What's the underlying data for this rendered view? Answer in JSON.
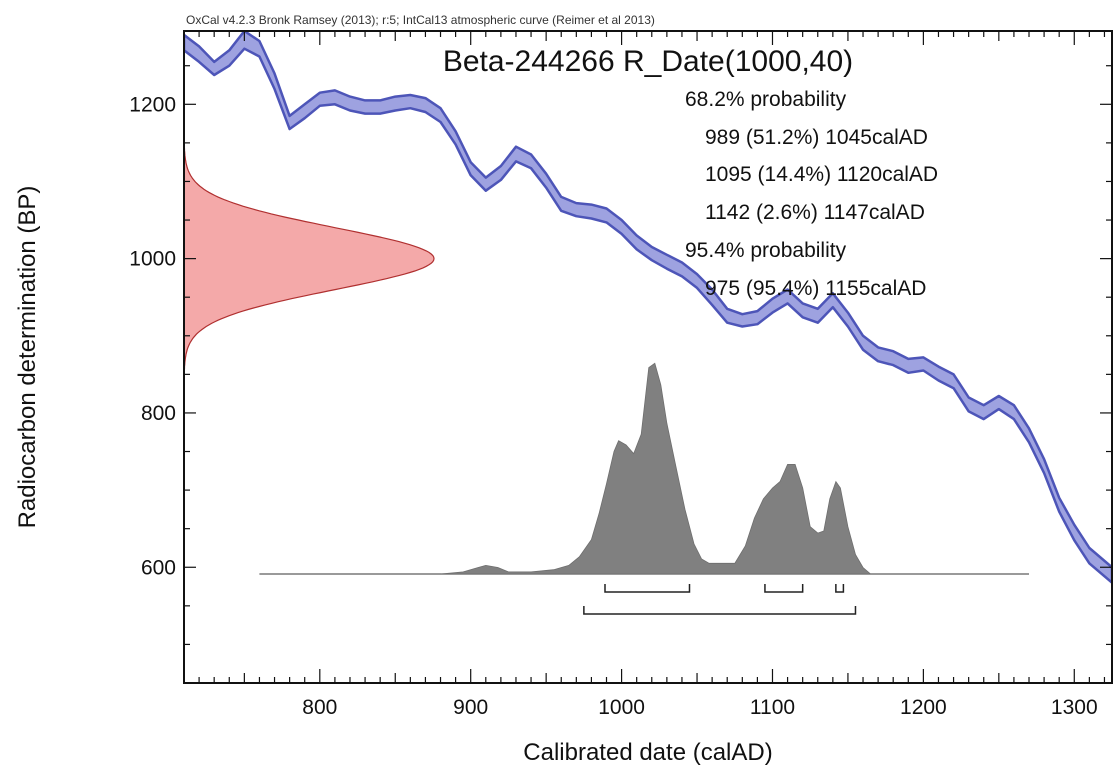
{
  "chart_data": {
    "type": "area",
    "credit": "OxCal v4.2.3 Bronk Ramsey (2013); r:5; IntCal13 atmospheric curve (Reimer et al 2013)",
    "title": "Beta-244266 R_Date(1000,40)",
    "xlabel": "Calibrated date (calAD)",
    "ylabel": "Radiocarbon determination (BP)",
    "xlim": [
      710,
      1325
    ],
    "ylim": [
      450,
      1295
    ],
    "x_ticks": [
      800,
      900,
      1000,
      1100,
      1200,
      1300
    ],
    "y_ticks": [
      600,
      800,
      1000,
      1200
    ],
    "annotations": [
      "68.2% probability",
      "989 (51.2%) 1045calAD",
      "1095 (14.4%) 1120calAD",
      "1142 (2.6%) 1147calAD",
      "95.4% probability",
      "975 (95.4%) 1155calAD"
    ],
    "calibration_curve": {
      "color": "#4d55b8",
      "fill": "#9ea2e0",
      "x": [
        710,
        720,
        730,
        740,
        750,
        760,
        770,
        780,
        790,
        800,
        810,
        820,
        830,
        840,
        850,
        860,
        870,
        880,
        890,
        900,
        910,
        920,
        930,
        940,
        950,
        960,
        970,
        980,
        990,
        1000,
        1010,
        1020,
        1030,
        1040,
        1050,
        1060,
        1070,
        1080,
        1090,
        1100,
        1110,
        1120,
        1130,
        1140,
        1150,
        1160,
        1170,
        1180,
        1190,
        1200,
        1210,
        1220,
        1230,
        1240,
        1250,
        1260,
        1270,
        1280,
        1290,
        1300,
        1310,
        1325
      ],
      "upper": [
        1290,
        1275,
        1255,
        1270,
        1295,
        1282,
        1240,
        1185,
        1200,
        1215,
        1218,
        1210,
        1205,
        1205,
        1210,
        1212,
        1208,
        1195,
        1165,
        1125,
        1105,
        1120,
        1145,
        1135,
        1110,
        1080,
        1072,
        1070,
        1065,
        1050,
        1030,
        1015,
        1005,
        995,
        980,
        960,
        935,
        928,
        932,
        948,
        960,
        942,
        935,
        955,
        930,
        900,
        885,
        880,
        870,
        872,
        860,
        850,
        820,
        810,
        822,
        810,
        780,
        740,
        690,
        655,
        625,
        600
      ],
      "lower": [
        1270,
        1255,
        1238,
        1250,
        1272,
        1262,
        1220,
        1168,
        1182,
        1198,
        1200,
        1192,
        1188,
        1188,
        1192,
        1195,
        1190,
        1177,
        1148,
        1108,
        1088,
        1102,
        1126,
        1117,
        1092,
        1062,
        1055,
        1052,
        1047,
        1032,
        1012,
        998,
        987,
        977,
        962,
        940,
        917,
        912,
        915,
        930,
        942,
        924,
        917,
        937,
        912,
        882,
        867,
        862,
        852,
        855,
        842,
        832,
        802,
        792,
        805,
        792,
        762,
        722,
        672,
        635,
        605,
        580
      ]
    },
    "radiocarbon_date": {
      "mean": 1000,
      "sd": 40,
      "fill": "#f4a9a9",
      "stroke": "#b03030"
    },
    "calibrated_distribution": {
      "fill": "#808080",
      "baseline_range": [
        760,
        1270
      ],
      "x": [
        760,
        880,
        895,
        905,
        910,
        918,
        925,
        940,
        955,
        965,
        972,
        980,
        985,
        990,
        995,
        998,
        1003,
        1008,
        1013,
        1018,
        1022,
        1026,
        1030,
        1036,
        1042,
        1048,
        1053,
        1058,
        1065,
        1075,
        1082,
        1088,
        1094,
        1100,
        1105,
        1110,
        1115,
        1120,
        1125,
        1130,
        1134,
        1138,
        1142,
        1145,
        1150,
        1155,
        1160,
        1165,
        1270
      ],
      "density": [
        0,
        0,
        0.01,
        0.03,
        0.04,
        0.03,
        0.01,
        0.01,
        0.02,
        0.04,
        0.08,
        0.16,
        0.28,
        0.42,
        0.57,
        0.62,
        0.6,
        0.56,
        0.65,
        0.96,
        0.98,
        0.88,
        0.7,
        0.5,
        0.3,
        0.14,
        0.07,
        0.05,
        0.05,
        0.05,
        0.13,
        0.26,
        0.35,
        0.4,
        0.43,
        0.51,
        0.51,
        0.4,
        0.22,
        0.19,
        0.2,
        0.35,
        0.43,
        0.4,
        0.22,
        0.09,
        0.03,
        0,
        0
      ]
    },
    "range_brackets": [
      {
        "level": "68.2%",
        "ranges": [
          [
            989,
            1045
          ],
          [
            1095,
            1120
          ],
          [
            1142,
            1147
          ]
        ]
      },
      {
        "level": "95.4%",
        "ranges": [
          [
            975,
            1155
          ]
        ]
      }
    ]
  }
}
